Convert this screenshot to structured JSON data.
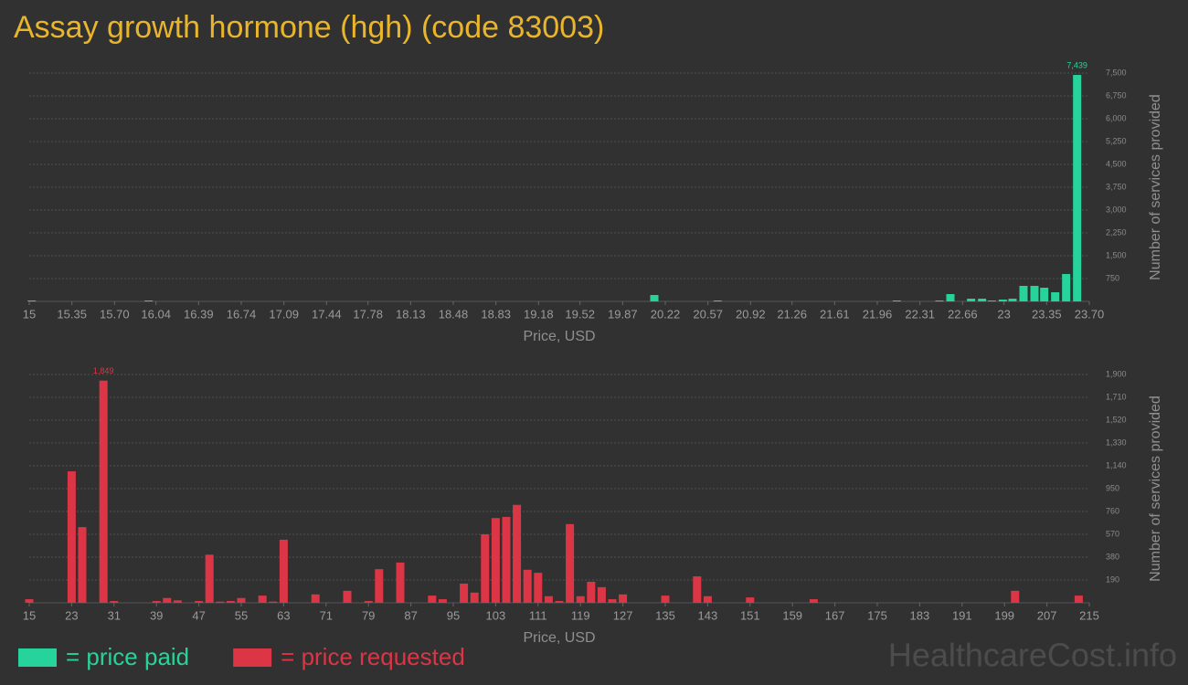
{
  "title": "Assay growth hormone (hgh) (code 83003)",
  "watermark": "HealthcareCost.info",
  "chart_data": [
    {
      "type": "bar",
      "x": [
        15.02,
        15.98,
        20.13,
        20.65,
        22.12,
        22.47,
        22.56,
        22.73,
        22.82,
        22.9,
        22.99,
        23.07,
        23.16,
        23.25,
        23.33,
        23.42,
        23.51,
        23.6
      ],
      "series": [
        {
          "name": "= price paid",
          "color": "#26d49b",
          "values": [
            30,
            30,
            210,
            30,
            30,
            30,
            240,
            90,
            90,
            30,
            60,
            90,
            510,
            510,
            450,
            300,
            900,
            7439
          ],
          "value_labels": [
            null,
            null,
            null,
            null,
            null,
            null,
            null,
            null,
            null,
            null,
            null,
            null,
            null,
            null,
            null,
            null,
            null,
            "7,439"
          ]
        }
      ],
      "xlim": [
        15,
        23.7
      ],
      "xticks": [
        15,
        15.35,
        {
          "value": 15.7,
          "label": "15.70"
        },
        16.04,
        16.39,
        16.74,
        17.09,
        17.44,
        17.78,
        18.13,
        18.48,
        18.83,
        19.18,
        19.52,
        19.87,
        20.22,
        20.57,
        20.92,
        21.26,
        21.61,
        21.96,
        22.31,
        22.66,
        23,
        23.35,
        {
          "value": 23.7,
          "label": "23.70"
        }
      ],
      "ylim": [
        0,
        7500
      ],
      "yticks": [
        750,
        {
          "value": 1500,
          "label": "1,500"
        },
        {
          "value": 2250,
          "label": "2,250"
        },
        {
          "value": 3000,
          "label": "3,000"
        },
        {
          "value": 3750,
          "label": "3,750"
        },
        {
          "value": 4500,
          "label": "4,500"
        },
        {
          "value": 5250,
          "label": "5,250"
        },
        {
          "value": 6000,
          "label": "6,000"
        },
        {
          "value": 6750,
          "label": "6,750"
        },
        {
          "value": 7500,
          "label": "7,500"
        }
      ],
      "xlabel": "Price, USD",
      "ylabel": "Number of services provided",
      "grid": true
    },
    {
      "type": "bar",
      "x": [
        15,
        23,
        25,
        29,
        31,
        39,
        41,
        43,
        47,
        49,
        51,
        53,
        55,
        59,
        61,
        63,
        69,
        75,
        79,
        81,
        85,
        91,
        93,
        97,
        99,
        101,
        103,
        105,
        107,
        109,
        111,
        113,
        115,
        117,
        119,
        121,
        123,
        125,
        127,
        135,
        141,
        143,
        151,
        163,
        201,
        213
      ],
      "series": [
        {
          "name": "= price requested",
          "color": "#dc3545",
          "values": [
            30,
            1094,
            630,
            1849,
            15,
            15,
            40,
            20,
            15,
            400,
            10,
            15,
            40,
            60,
            10,
            525,
            70,
            100,
            15,
            280,
            335,
            60,
            30,
            160,
            85,
            570,
            705,
            715,
            815,
            275,
            250,
            55,
            15,
            655,
            55,
            175,
            130,
            30,
            70,
            60,
            220,
            55,
            45,
            30,
            100,
            60
          ],
          "value_labels": [
            null,
            null,
            null,
            "1,849",
            null,
            null,
            null,
            null,
            null,
            null,
            null,
            null,
            null,
            null,
            null,
            null,
            null,
            null,
            null,
            null,
            null,
            null,
            null,
            null,
            null,
            null,
            null,
            null,
            null,
            null,
            null,
            null,
            null,
            null,
            null,
            null,
            null,
            null,
            null,
            null,
            null,
            null,
            null,
            null,
            null,
            null
          ]
        }
      ],
      "xlim": [
        15,
        215
      ],
      "xticks": [
        15,
        23,
        31,
        39,
        47,
        55,
        63,
        71,
        79,
        87,
        95,
        103,
        111,
        119,
        127,
        135,
        143,
        151,
        159,
        167,
        175,
        183,
        191,
        199,
        207,
        215
      ],
      "ylim": [
        0,
        1900
      ],
      "yticks": [
        190,
        380,
        570,
        760,
        950,
        {
          "value": 1140,
          "label": "1,140"
        },
        {
          "value": 1330,
          "label": "1,330"
        },
        {
          "value": 1520,
          "label": "1,520"
        },
        {
          "value": 1710,
          "label": "1,710"
        },
        {
          "value": 1900,
          "label": "1,900"
        }
      ],
      "xlabel": "Price, USD",
      "ylabel": "Number of services provided",
      "grid": true
    }
  ]
}
